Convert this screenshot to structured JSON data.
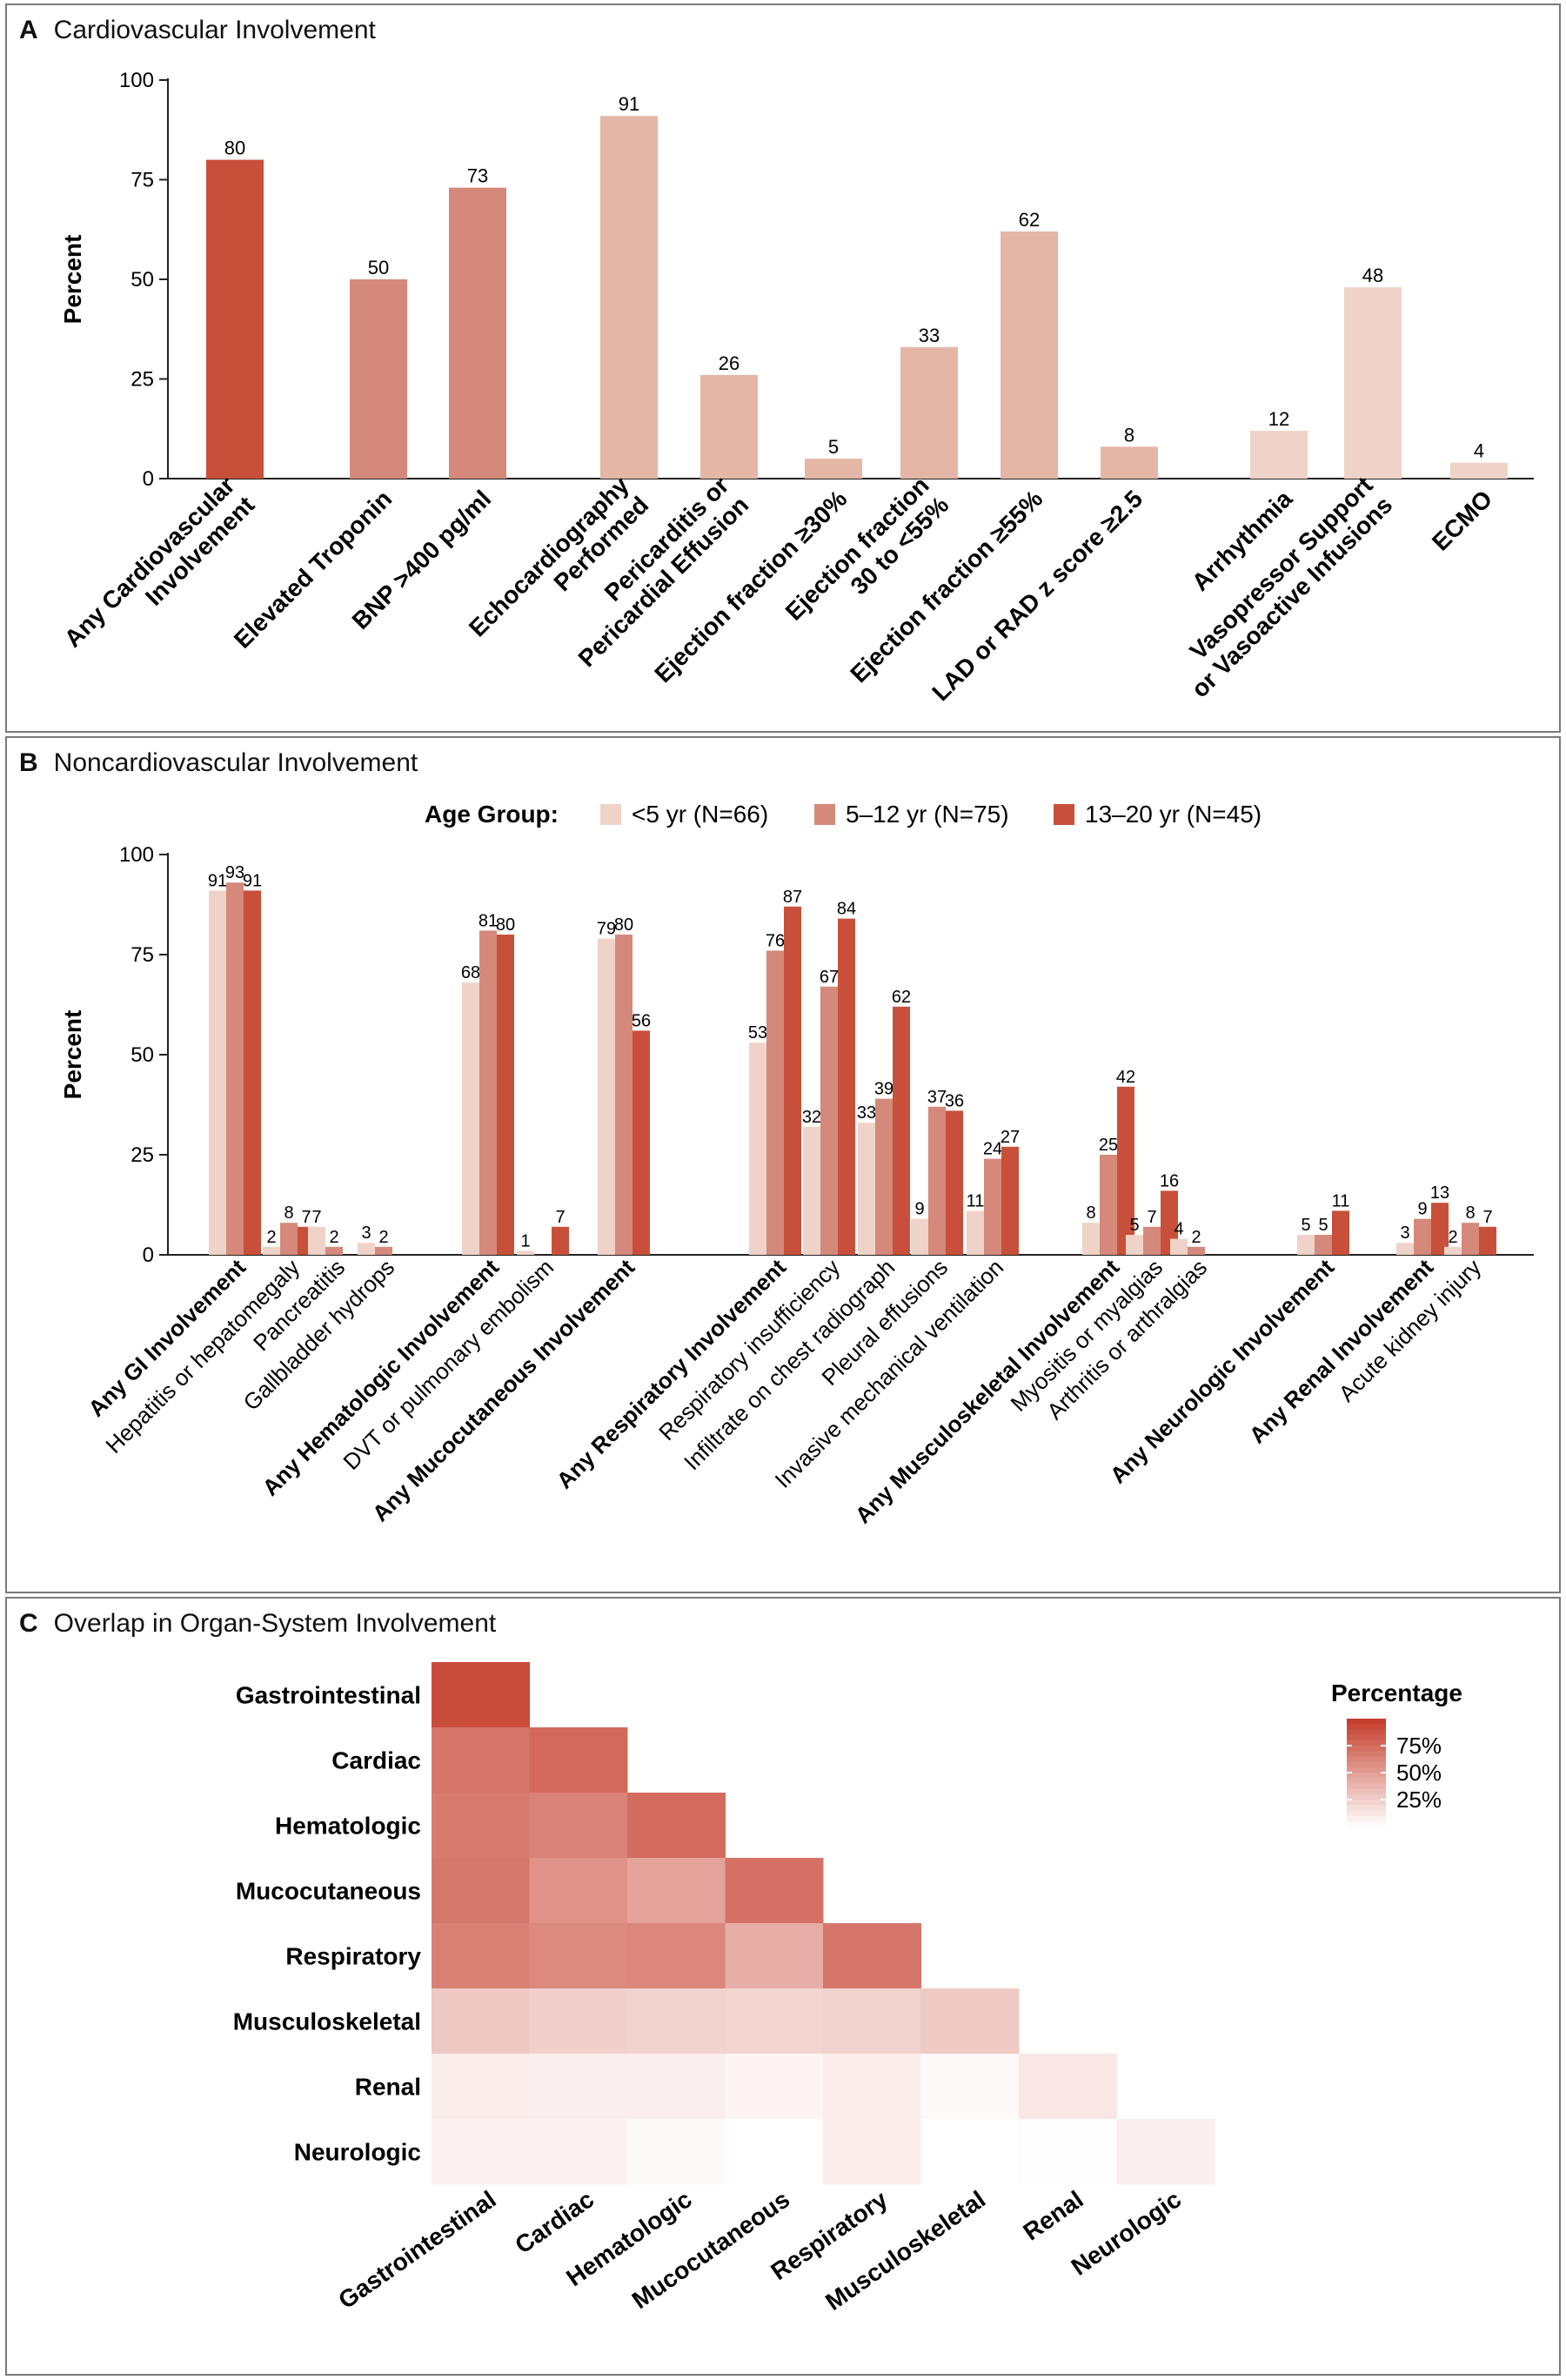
{
  "panelA": {
    "letter": "A",
    "title": "Cardiovascular Involvement",
    "ylabel": "Percent"
  },
  "panelB": {
    "letter": "B",
    "title": "Noncardiovascular Involvement",
    "ylabel": "Percent",
    "legend_title": "Age Group:"
  },
  "panelC": {
    "letter": "C",
    "title": "Overlap in Organ-System Involvement",
    "legend_title": "Percentage"
  },
  "colors": {
    "dark": "#c8503a",
    "mid": "#d4897a",
    "light": "#e3b6a6",
    "lighter": "#f0d3c8",
    "lightest": "#f4ddd4",
    "axis": "#222222"
  },
  "chart_data": [
    {
      "type": "bar",
      "title": "Cardiovascular Involvement",
      "xlabel": "",
      "ylabel": "Percent",
      "ylim": [
        0,
        100
      ],
      "yticks": [
        0,
        25,
        50,
        75,
        100
      ],
      "grid": false,
      "categories": [
        [
          "Any Cardiovascular",
          "Involvement"
        ],
        [
          "Elevated Troponin"
        ],
        [
          "BNP >400 pg/ml"
        ],
        [
          "Echocardiography",
          "Performed"
        ],
        [
          "Pericarditis or",
          "Pericardial Effusion"
        ],
        [
          "Ejection fraction ≥30%"
        ],
        [
          "Ejection fraction",
          "30 to <55%"
        ],
        [
          "Ejection fraction ≥55%"
        ],
        [
          "LAD or RAD z score ≥2.5"
        ],
        [
          "Arrhythmia"
        ],
        [
          "Vasopressor Support",
          "or Vasoactive Infusions"
        ],
        [
          "ECMO"
        ]
      ],
      "values": [
        80,
        50,
        73,
        91,
        26,
        5,
        33,
        62,
        8,
        12,
        48,
        4
      ],
      "bar_colors": [
        "#c8503a",
        "#d4897a",
        "#d4897a",
        "#e3b6a6",
        "#e3b6a6",
        "#e3b6a6",
        "#e3b6a6",
        "#e3b6a6",
        "#e3b6a6",
        "#f0d3c8",
        "#f0d3c8",
        "#f0d3c8"
      ]
    },
    {
      "type": "bar",
      "title": "Noncardiovascular Involvement",
      "xlabel": "",
      "ylabel": "Percent",
      "ylim": [
        0,
        100
      ],
      "yticks": [
        0,
        25,
        50,
        75,
        100
      ],
      "grid": false,
      "legend_title": "Age Group:",
      "legend_position": "top",
      "categories": [
        "Any GI Involvement",
        "Hepatitis or hepatomegaly",
        "Pancreatitis",
        "Gallbladder hydrops",
        "Any Hematologic Involvement",
        "DVT or pulmonary embolism",
        "Any Mucocutaneous Involvement",
        "Any Respiratory Involvement",
        "Respiratory insufficiency",
        "Infiltrate on chest radiograph",
        "Pleural effusions",
        "Invasive mechanical ventilation",
        "Any Musculoskeletal Involvement",
        "Myositis or myalgias",
        "Arthritis or arthralgias",
        "Any Neurologic Involvement",
        "Any Renal Involvement",
        "Acute kidney injury"
      ],
      "bold_categories": [
        true,
        false,
        false,
        false,
        true,
        false,
        true,
        true,
        false,
        false,
        false,
        false,
        true,
        false,
        false,
        true,
        true,
        false
      ],
      "series": [
        {
          "name": "<5 yr (N=66)",
          "color": "#f0d3c8",
          "values": [
            91,
            2,
            7,
            3,
            68,
            1,
            79,
            53,
            32,
            33,
            9,
            11,
            8,
            5,
            4,
            5,
            3,
            2
          ],
          "labels": [
            "91",
            "2",
            "7",
            "3",
            "68",
            "1",
            "79",
            "53",
            "32",
            "33",
            "9",
            "11",
            "8",
            "5",
            "4",
            "5",
            "3",
            "2"
          ]
        },
        {
          "name": "5–12 yr (N=75)",
          "color": "#d4897a",
          "values": [
            93,
            8,
            2,
            2,
            81,
            0,
            80,
            76,
            67,
            39,
            37,
            24,
            25,
            7,
            2,
            5,
            9,
            8
          ],
          "labels": [
            "93",
            "8",
            "2",
            "2",
            "81",
            "",
            "80",
            "76",
            "67",
            "39",
            "37",
            "24",
            "25",
            "7",
            "2",
            "5",
            "9",
            "8"
          ]
        },
        {
          "name": "13–20 yr (N=45)",
          "color": "#c8503a",
          "values": [
            91,
            7,
            0,
            0,
            80,
            7,
            56,
            87,
            84,
            62,
            36,
            27,
            42,
            16,
            0,
            11,
            13,
            7
          ],
          "labels": [
            "91",
            "7",
            "",
            "",
            "80",
            "7",
            "56",
            "87",
            "84",
            "62",
            "36",
            "27",
            "42",
            "16",
            "",
            "11",
            "13",
            "7"
          ]
        }
      ]
    },
    {
      "type": "heatmap",
      "title": "Overlap in Organ-System Involvement",
      "xlabel": "",
      "ylabel": "",
      "categories": [
        "Gastrointestinal",
        "Cardiac",
        "Hematologic",
        "Mucocutaneous",
        "Respiratory",
        "Musculoskeletal",
        "Renal",
        "Neurologic"
      ],
      "matrix": [
        [
          91
        ],
        [
          70,
          76
        ],
        [
          67,
          63,
          75
        ],
        [
          69,
          55,
          46,
          72
        ],
        [
          64,
          60,
          61,
          41,
          70
        ],
        [
          28,
          24,
          23,
          22,
          23,
          27
        ],
        [
          9,
          8,
          8,
          5,
          9,
          3,
          12
        ],
        [
          7,
          6,
          3,
          0,
          9,
          0,
          1,
          8
        ]
      ],
      "color_scale": {
        "min": 0,
        "max": 100,
        "low_color": "#ffffff",
        "high_color": "#c43a28"
      },
      "legend_title": "Percentage",
      "legend_ticks": [
        "75%",
        "50%",
        "25%"
      ],
      "legend_tick_values": [
        75,
        50,
        25
      ]
    }
  ]
}
